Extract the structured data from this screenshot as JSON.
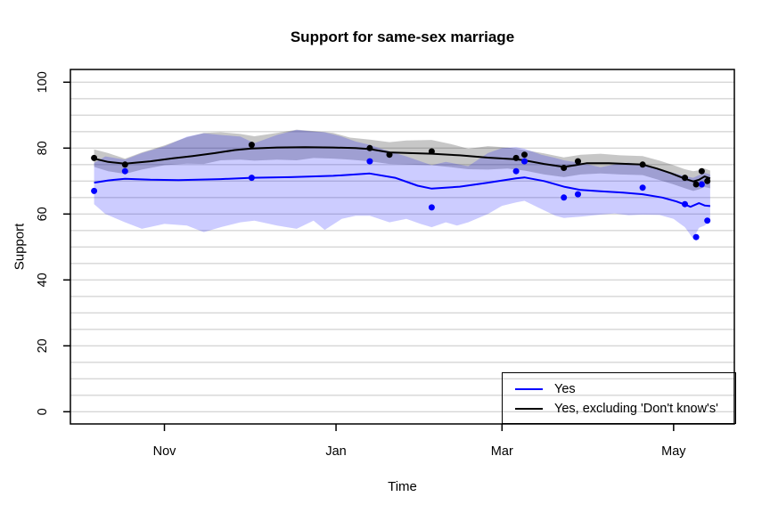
{
  "title": "Support for same-sex marriage",
  "axes": {
    "x_label": "Time",
    "y_label": "Support"
  },
  "legend": {
    "entries": [
      {
        "label": "Yes",
        "color": "#0000ff"
      },
      {
        "label": "Yes, excluding 'Don't know's'",
        "color": "#000000"
      }
    ]
  },
  "colors": {
    "grid": "#d6d6d6",
    "box": "#000000",
    "background": "#ffffff"
  },
  "chart_data": {
    "type": "line",
    "title": "Support for same-sex marriage",
    "xlabel": "Time",
    "ylabel": "Support",
    "ylim": [
      0,
      100
    ],
    "y_ticks": [
      0,
      20,
      40,
      60,
      80,
      100
    ],
    "grid_step": 5,
    "grid": true,
    "legend_position": "bottom-right",
    "x_unit": "days since Nov 1",
    "x_ticks": [
      {
        "label": "Nov",
        "day": 0
      },
      {
        "label": "Jan",
        "day": 61
      },
      {
        "label": "Mar",
        "day": 120
      },
      {
        "label": "May",
        "day": 181
      }
    ],
    "series": [
      {
        "name": "Yes",
        "color": "#0000ff",
        "band_color": "rgba(0,0,255,0.20)",
        "points": [
          [
            -25,
            67
          ],
          [
            -14,
            73
          ],
          [
            31,
            71
          ],
          [
            73,
            76
          ],
          [
            95,
            62
          ],
          [
            125,
            73
          ],
          [
            128,
            76
          ],
          [
            142,
            65
          ],
          [
            147,
            66
          ],
          [
            170,
            68
          ],
          [
            185,
            63
          ],
          [
            189,
            53
          ],
          [
            191,
            69
          ],
          [
            193,
            58
          ]
        ],
        "line": [
          [
            -25,
            69.5
          ],
          [
            -20,
            70.2
          ],
          [
            -14,
            70.7
          ],
          [
            -5,
            70.4
          ],
          [
            5,
            70.3
          ],
          [
            20,
            70.6
          ],
          [
            31,
            71
          ],
          [
            45,
            71.2
          ],
          [
            60,
            71.6
          ],
          [
            73,
            72.3
          ],
          [
            82,
            71
          ],
          [
            90,
            68.6
          ],
          [
            95,
            67.7
          ],
          [
            105,
            68.3
          ],
          [
            115,
            69.5
          ],
          [
            125,
            70.8
          ],
          [
            128,
            71.1
          ],
          [
            135,
            70
          ],
          [
            142,
            68.3
          ],
          [
            148,
            67.3
          ],
          [
            155,
            66.9
          ],
          [
            163,
            66.5
          ],
          [
            170,
            66
          ],
          [
            177,
            65
          ],
          [
            182,
            63.8
          ],
          [
            185,
            62.9
          ],
          [
            187,
            62.2
          ],
          [
            190,
            63.3
          ],
          [
            192,
            62.6
          ],
          [
            194,
            62.4
          ]
        ],
        "band": [
          [
            -25,
            63,
            75.5
          ],
          [
            -21,
            60,
            77.5
          ],
          [
            -14,
            57.5,
            76.5
          ],
          [
            -8,
            55.5,
            78.5
          ],
          [
            0,
            57,
            80.5
          ],
          [
            8,
            56.5,
            83.5
          ],
          [
            14,
            54.5,
            84.5
          ],
          [
            20,
            56,
            84
          ],
          [
            27,
            57.5,
            83.5
          ],
          [
            32,
            58,
            81.5
          ],
          [
            40,
            56.5,
            84
          ],
          [
            47,
            55.5,
            85.5
          ],
          [
            53,
            58,
            85
          ],
          [
            57,
            55.2,
            84.8
          ],
          [
            63,
            58.5,
            83.5
          ],
          [
            68,
            59.5,
            82
          ],
          [
            73,
            59.5,
            81
          ],
          [
            80,
            57.5,
            79
          ],
          [
            86,
            58.5,
            77.5
          ],
          [
            91,
            57,
            76
          ],
          [
            95,
            56,
            74.8
          ],
          [
            100,
            57.5,
            75.8
          ],
          [
            104,
            56.5,
            75.2
          ],
          [
            108,
            57.5,
            74.5
          ],
          [
            115,
            60,
            78.5
          ],
          [
            120,
            62.5,
            80
          ],
          [
            125,
            63.5,
            80.3
          ],
          [
            128,
            64,
            79.8
          ],
          [
            134,
            61.5,
            78
          ],
          [
            139,
            59.5,
            77
          ],
          [
            142,
            58.8,
            76.3
          ],
          [
            148,
            59.2,
            75.5
          ],
          [
            155,
            59.8,
            74.2
          ],
          [
            160,
            60.2,
            75
          ],
          [
            165,
            59.6,
            75.6
          ],
          [
            170,
            59.8,
            74.8
          ],
          [
            176,
            59.7,
            73.5
          ],
          [
            181,
            58.5,
            72.5
          ],
          [
            185,
            56,
            71.5
          ],
          [
            188,
            52.5,
            71
          ],
          [
            190,
            55.8,
            71.8
          ],
          [
            192,
            56.5,
            72.5
          ],
          [
            194,
            57.8,
            72
          ]
        ]
      },
      {
        "name": "Yes, excluding 'Don't know's'",
        "color": "#000000",
        "band_color": "rgba(0,0,0,0.22)",
        "points": [
          [
            -25,
            77
          ],
          [
            -14,
            75
          ],
          [
            31,
            81
          ],
          [
            73,
            80
          ],
          [
            80,
            78
          ],
          [
            95,
            79
          ],
          [
            125,
            77
          ],
          [
            128,
            78
          ],
          [
            142,
            74
          ],
          [
            147,
            76
          ],
          [
            170,
            75
          ],
          [
            185,
            71
          ],
          [
            189,
            69
          ],
          [
            191,
            73
          ],
          [
            193,
            70
          ]
        ],
        "line": [
          [
            -25,
            76.8
          ],
          [
            -20,
            75.8
          ],
          [
            -14,
            75.3
          ],
          [
            -5,
            76
          ],
          [
            3,
            76.9
          ],
          [
            10,
            77.6
          ],
          [
            18,
            78.5
          ],
          [
            25,
            79.4
          ],
          [
            31,
            79.9
          ],
          [
            40,
            80.2
          ],
          [
            50,
            80.3
          ],
          [
            60,
            80.2
          ],
          [
            68,
            80
          ],
          [
            73,
            79.7
          ],
          [
            80,
            78.7
          ],
          [
            87,
            78.5
          ],
          [
            95,
            78.3
          ],
          [
            105,
            77.8
          ],
          [
            115,
            77.1
          ],
          [
            125,
            76.6
          ],
          [
            128,
            76.3
          ],
          [
            135,
            75.2
          ],
          [
            142,
            74.3
          ],
          [
            146,
            74.8
          ],
          [
            150,
            75.4
          ],
          [
            158,
            75.4
          ],
          [
            165,
            75.2
          ],
          [
            170,
            75
          ],
          [
            175,
            73.8
          ],
          [
            180,
            72.4
          ],
          [
            185,
            70.7
          ],
          [
            188,
            69.9
          ],
          [
            190,
            70.4
          ],
          [
            192,
            71.4
          ],
          [
            194,
            70.8
          ]
        ],
        "band": [
          [
            -25,
            74.3,
            79.6
          ],
          [
            -20,
            73,
            78.5
          ],
          [
            -14,
            72.2,
            76.8
          ],
          [
            -8,
            73.5,
            78.7
          ],
          [
            0,
            74.8,
            80.8
          ],
          [
            8,
            75.3,
            83.3
          ],
          [
            14,
            75.2,
            84.6
          ],
          [
            20,
            76.3,
            84.8
          ],
          [
            27,
            76.5,
            84.3
          ],
          [
            32,
            76.2,
            83.6
          ],
          [
            40,
            76.5,
            84.6
          ],
          [
            47,
            76.3,
            85.6
          ],
          [
            53,
            77,
            85.2
          ],
          [
            60,
            76.8,
            84.6
          ],
          [
            66,
            76.5,
            83.2
          ],
          [
            73,
            76,
            82.6
          ],
          [
            80,
            75.2,
            81.8
          ],
          [
            86,
            75,
            82.3
          ],
          [
            95,
            74.8,
            82.5
          ],
          [
            102,
            74.2,
            81.2
          ],
          [
            108,
            73.6,
            79.8
          ],
          [
            115,
            73.5,
            80.6
          ],
          [
            122,
            73.8,
            80.2
          ],
          [
            128,
            73.2,
            79.4
          ],
          [
            135,
            72,
            78.4
          ],
          [
            142,
            71.2,
            77.2
          ],
          [
            148,
            72,
            78
          ],
          [
            155,
            72.3,
            78.3
          ],
          [
            162,
            72,
            77.8
          ],
          [
            170,
            71.8,
            77.6
          ],
          [
            176,
            70.3,
            76.2
          ],
          [
            181,
            69,
            74.8
          ],
          [
            185,
            67.8,
            73.6
          ],
          [
            188,
            67,
            73
          ],
          [
            190,
            67.5,
            73.3
          ],
          [
            192,
            68.2,
            73.8
          ],
          [
            194,
            67.8,
            73.2
          ]
        ]
      }
    ]
  }
}
